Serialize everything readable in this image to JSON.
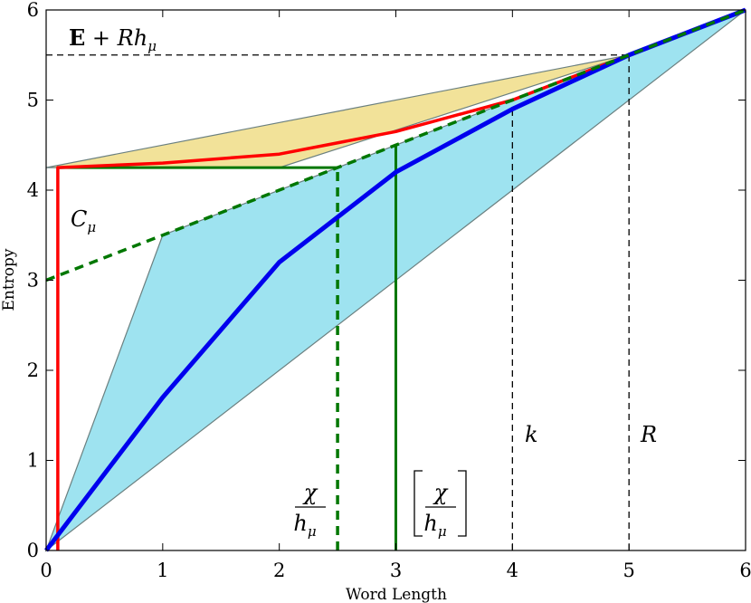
{
  "chart_data": {
    "type": "line",
    "xlabel": "Word Length",
    "ylabel": "Entropy",
    "xlim": [
      0,
      6
    ],
    "ylim": [
      0,
      6
    ],
    "x_ticks": [
      "0",
      "1",
      "2",
      "3",
      "4",
      "5",
      "6"
    ],
    "y_ticks": [
      "0",
      "1",
      "2",
      "3",
      "4",
      "5",
      "6"
    ],
    "grid": false,
    "colors": {
      "upper_fill": "#f2e299",
      "lower_fill": "#9ee3f0",
      "fill_edge": "#6b8080",
      "red": "#ff0000",
      "blue": "#0000ee",
      "green": "#007700",
      "black": "#000000"
    },
    "regions": {
      "upper": {
        "x": [
          0,
          2,
          5
        ],
        "y": [
          4.25,
          4.25,
          5.5
        ],
        "top_x": [
          0,
          5
        ],
        "top_y": [
          4.25,
          5.5
        ]
      },
      "lower": {
        "x": [
          0,
          1,
          5,
          6
        ],
        "y": [
          0,
          3.5,
          5.5,
          6
        ],
        "bottom_x": [
          0,
          6
        ],
        "bottom_y": [
          0,
          6
        ]
      }
    },
    "series": [
      {
        "color": "red",
        "x": [
          0.1,
          0.1,
          1,
          2,
          3,
          4,
          5,
          6
        ],
        "y": [
          0,
          4.25,
          4.3,
          4.4,
          4.65,
          5.0,
          5.5,
          6.0
        ]
      },
      {
        "color": "blue",
        "x": [
          0,
          1,
          2,
          3,
          4,
          5,
          6
        ],
        "y": [
          0,
          1.7,
          3.2,
          4.2,
          4.9,
          5.5,
          6.0
        ]
      },
      {
        "color": "green-dashed",
        "x": [
          0,
          6
        ],
        "y": [
          3.0,
          6.0
        ]
      }
    ],
    "annotations": {
      "excess_entropy_label": "E + Rh",
      "excess_entropy_sub": "μ",
      "statistical_complexity": "C",
      "statistical_complexity_sub": "μ",
      "chi_num": "χ",
      "chi_den": "h",
      "chi_den_sub": "μ",
      "k_label": "k",
      "r_label": "R"
    },
    "reference_lines": {
      "h_dashed_y": 5.5,
      "h_dashed_x_end": 5,
      "k_x": 4,
      "R_x": 5,
      "chi_over_h_x": 2.5,
      "ceil_chi_over_h_x": 3,
      "c_mu_y": 4.25
    }
  }
}
